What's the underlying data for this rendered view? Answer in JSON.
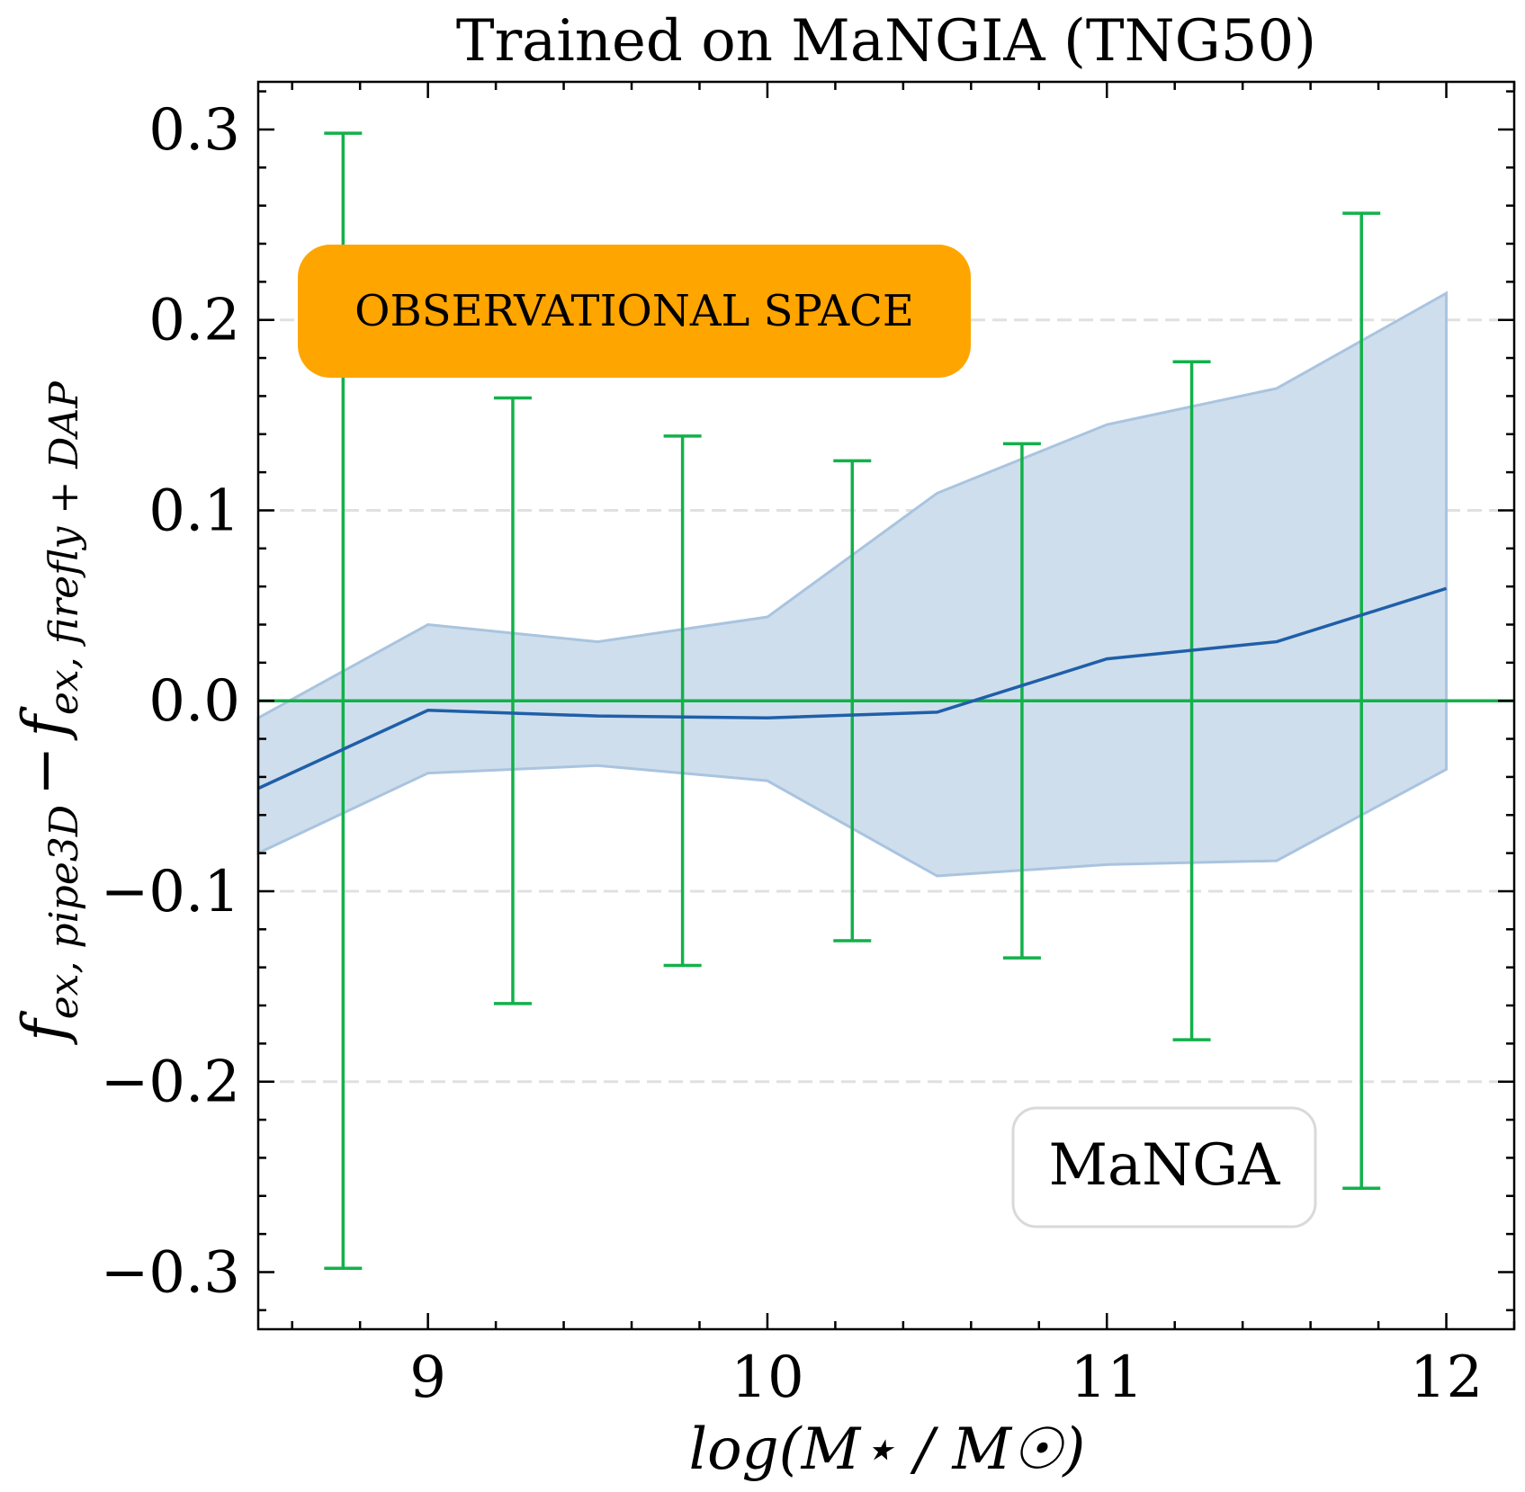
{
  "chart_data": {
    "type": "line",
    "title": "Trained on MaNGIA (TNG50)",
    "xlabel": "log(M⋆ / M☉)",
    "ylabel": {
      "f1": "f",
      "sub1": "ex, pipe3D",
      "minus": "−",
      "f2": "f",
      "sub2": "ex, firefly + DAP"
    },
    "xlim": [
      8.5,
      12.2
    ],
    "ylim": [
      -0.33,
      0.325
    ],
    "x_ticks": [
      9,
      10,
      11,
      12
    ],
    "x_tick_labels": [
      "9",
      "10",
      "11",
      "12"
    ],
    "y_ticks": [
      -0.3,
      -0.2,
      -0.1,
      0.0,
      0.1,
      0.2,
      0.3
    ],
    "y_tick_labels": [
      "−0.3",
      "−0.2",
      "−0.1",
      "0.0",
      "0.1",
      "0.2",
      "0.3"
    ],
    "gridlines_y": [
      -0.2,
      -0.1,
      0.0,
      0.1,
      0.2
    ],
    "reference_line": 0.0,
    "series": [
      {
        "name": "median",
        "color": "#1f5fa8",
        "x": [
          8.5,
          9.0,
          9.5,
          10.0,
          10.5,
          11.0,
          11.5,
          12.0
        ],
        "y": [
          -0.046,
          -0.005,
          -0.008,
          -0.009,
          -0.006,
          0.022,
          0.031,
          0.059
        ],
        "band_upper": [
          -0.009,
          0.04,
          0.031,
          0.044,
          0.109,
          0.145,
          0.164,
          0.214
        ],
        "band_lower": [
          -0.08,
          -0.038,
          -0.034,
          -0.042,
          -0.092,
          -0.086,
          -0.084,
          -0.036
        ],
        "band_color": "#cfdeed"
      }
    ],
    "errorbars": {
      "color": "#12b14a",
      "x": [
        8.75,
        9.25,
        9.75,
        10.25,
        10.75,
        11.25,
        11.75
      ],
      "center": [
        0,
        0,
        0,
        0,
        0,
        0,
        0
      ],
      "halfwidth": [
        0.298,
        0.159,
        0.139,
        0.126,
        0.135,
        0.178,
        0.256
      ]
    },
    "annotations": {
      "observational": "OBSERVATIONAL SPACE",
      "dataset": "MaNGA"
    },
    "colors": {
      "observational_box": "#ffa500",
      "dataset_box_border": "#d9d9d9",
      "axis": "#000000",
      "grid": "#e0e0e0"
    }
  }
}
